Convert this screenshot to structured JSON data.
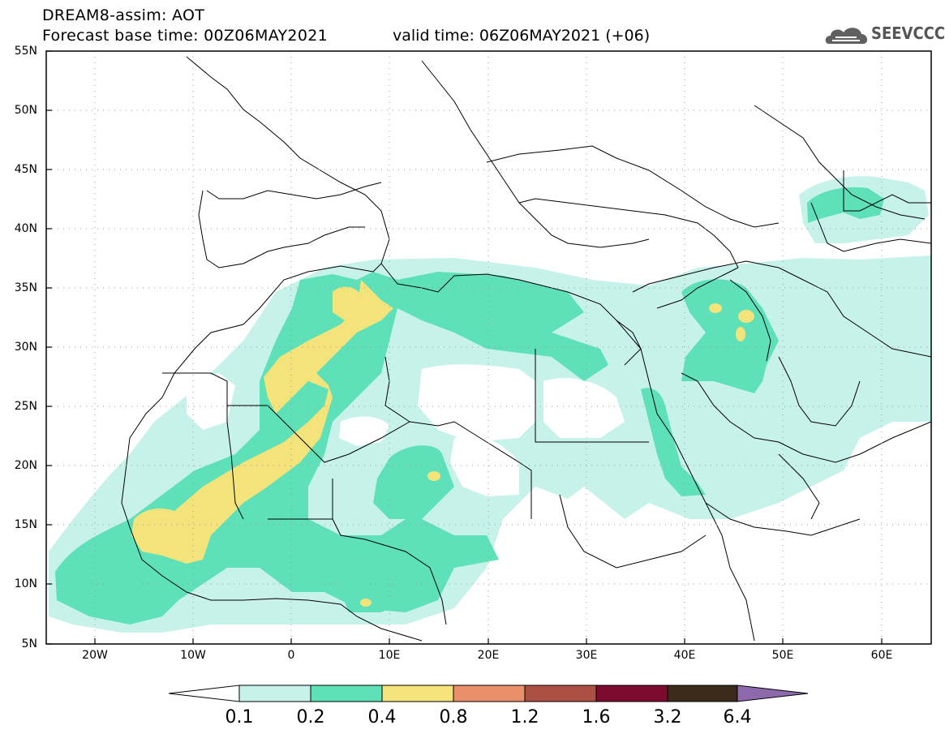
{
  "header": {
    "title": "DREAM8-assim: AOT",
    "base_time": "Forecast base time: 00Z06MAY2021",
    "valid_time": "valid time: 06Z06MAY2021 (+06)",
    "logo_text": "SEEVCCC"
  },
  "axes": {
    "lat_labels": [
      "55N",
      "50N",
      "45N",
      "40N",
      "35N",
      "30N",
      "25N",
      "20N",
      "15N",
      "10N",
      "5N"
    ],
    "lon_labels": [
      "20W",
      "10W",
      "0",
      "10E",
      "20E",
      "30E",
      "40E",
      "50E",
      "60E"
    ]
  },
  "legend": {
    "thresholds": [
      "0.1",
      "0.2",
      "0.4",
      "0.8",
      "1.2",
      "1.6",
      "3.2",
      "6.4"
    ],
    "colors": [
      "#c6f2ea",
      "#5ee0b9",
      "#f3e37a",
      "#e9906a",
      "#ab5043",
      "#7d0b2e",
      "#3b2a1a",
      "#8e6aad"
    ]
  },
  "colors": {
    "level1": "#c6f2ea",
    "level2": "#5ee0b9",
    "level3": "#f3e37a",
    "border": "#000000"
  }
}
